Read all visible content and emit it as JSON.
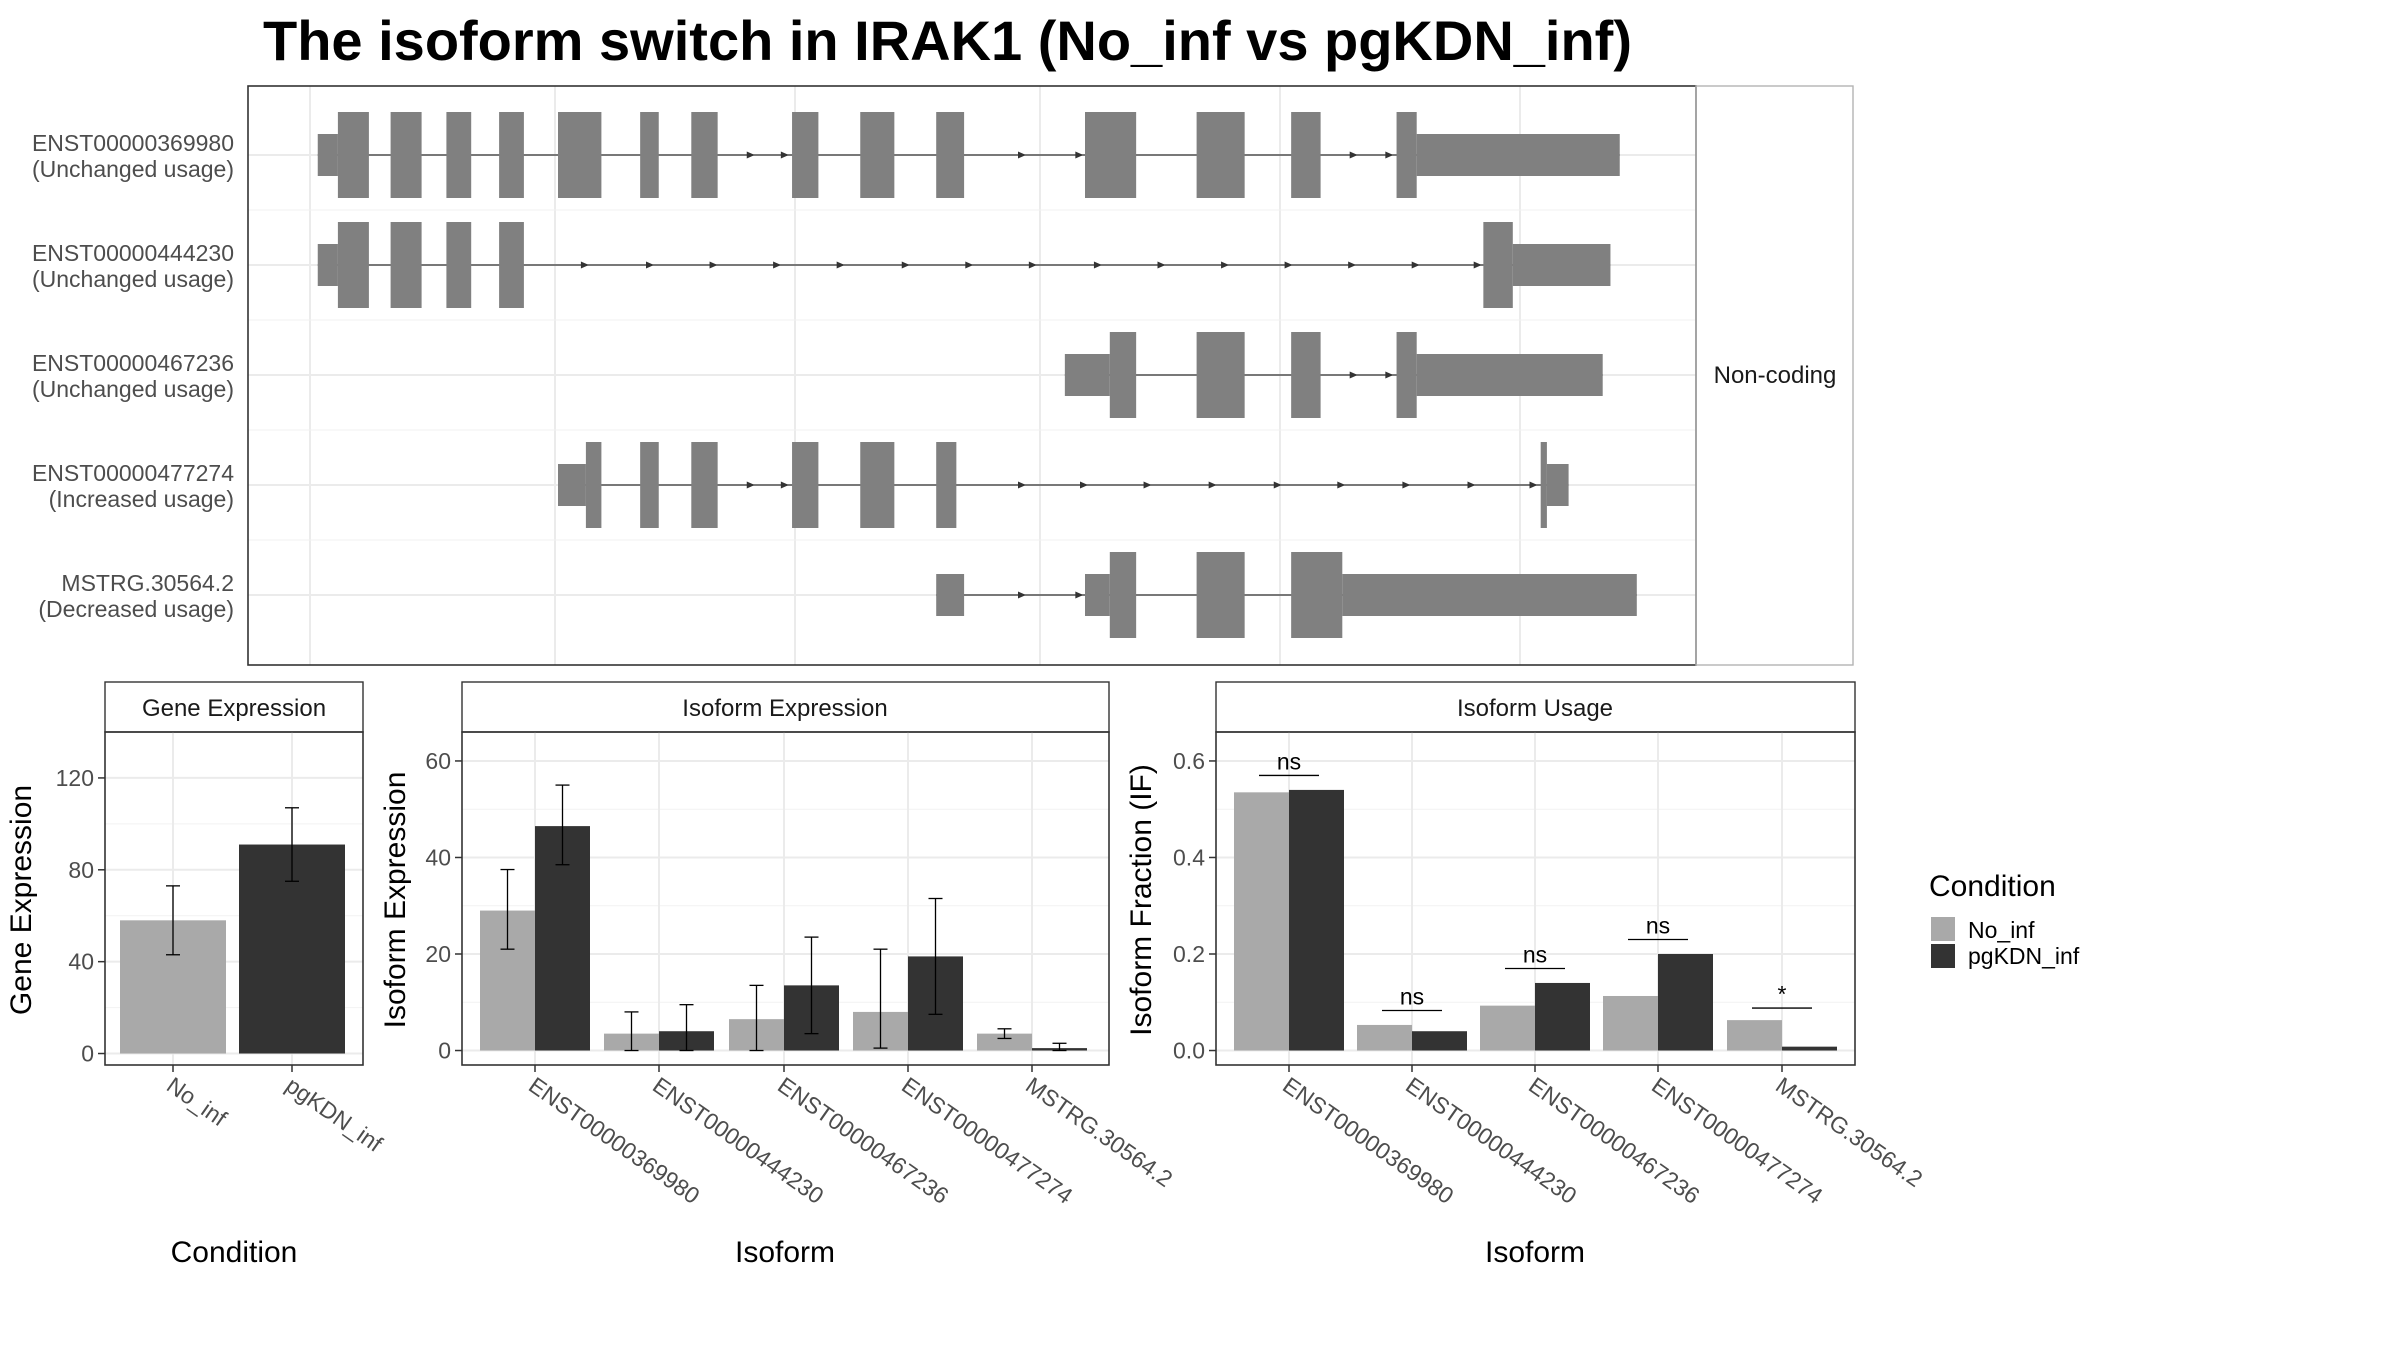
{
  "title": "The isoform switch in IRAK1 (No_inf vs pgKDN_inf)",
  "colors": {
    "exon": "#808080",
    "No_inf": "#a9a9a9",
    "pgKDN_inf": "#333333",
    "grid": "#ebebeb",
    "panel_border": "#333333"
  },
  "chart_data": [
    {
      "type": "gene-structure",
      "facet_label": "Non-coding",
      "transcripts": [
        {
          "id": "ENST00000369980",
          "status": "(Unchanged usage)",
          "exons": [
            [
              205,
              218,
              "utr"
            ],
            [
              218,
              238,
              "cds"
            ],
            [
              252,
              272,
              "cds"
            ],
            [
              288,
              304,
              "cds"
            ],
            [
              322,
              338,
              "cds"
            ],
            [
              360,
              388,
              "cds"
            ],
            [
              413,
              425,
              "cds"
            ],
            [
              446,
              463,
              "cds"
            ],
            [
              511,
              528,
              "cds"
            ],
            [
              555,
              577,
              "cds"
            ],
            [
              604,
              622,
              "cds"
            ],
            [
              700,
              733,
              "cds"
            ],
            [
              772,
              803,
              "cds"
            ],
            [
              833,
              852,
              "cds"
            ],
            [
              901,
              914,
              "cds"
            ],
            [
              914,
              1045,
              "utr"
            ]
          ],
          "arrows": [
            485,
            507,
            660,
            697,
            874,
            897
          ]
        },
        {
          "id": "ENST00000444230",
          "status": "(Unchanged usage)",
          "exons": [
            [
              205,
              218,
              "utr"
            ],
            [
              218,
              238,
              "cds"
            ],
            [
              252,
              272,
              "cds"
            ],
            [
              288,
              304,
              "cds"
            ],
            [
              322,
              338,
              "cds"
            ],
            [
              957,
              976,
              "cds"
            ],
            [
              976,
              1039,
              "utr"
            ]
          ],
          "arrows": [
            378,
            420,
            461,
            502,
            543,
            585,
            626,
            667,
            709,
            750,
            791,
            832,
            873,
            914,
            954
          ]
        },
        {
          "id": "ENST00000467236",
          "status": "(Unchanged usage)",
          "exons": [
            [
              687,
              716,
              "utr"
            ],
            [
              716,
              733,
              "cds"
            ],
            [
              772,
              803,
              "cds"
            ],
            [
              833,
              852,
              "cds"
            ],
            [
              901,
              914,
              "cds"
            ],
            [
              914,
              1034,
              "utr"
            ]
          ],
          "arrows": [
            874,
            897
          ]
        },
        {
          "id": "ENST00000477274",
          "status": "(Increased usage)",
          "exons": [
            [
              360,
              378,
              "utr"
            ],
            [
              378,
              388,
              "cds"
            ],
            [
              413,
              425,
              "cds"
            ],
            [
              446,
              463,
              "cds"
            ],
            [
              511,
              528,
              "cds"
            ],
            [
              555,
              577,
              "cds"
            ],
            [
              604,
              617,
              "cds"
            ],
            [
              994,
              998,
              "cds"
            ],
            [
              998,
              1012,
              "utr"
            ]
          ],
          "arrows": [
            485,
            507,
            660,
            700,
            741,
            783,
            825,
            866,
            908,
            950,
            990
          ]
        },
        {
          "id": "MSTRG.30564.2",
          "status": "(Decreased usage)",
          "exons": [
            [
              604,
              622,
              "utr"
            ],
            [
              700,
              716,
              "utr"
            ],
            [
              716,
              733,
              "cds"
            ],
            [
              772,
              803,
              "cds"
            ],
            [
              833,
              866,
              "cds"
            ],
            [
              866,
              1056,
              "utr"
            ]
          ],
          "arrows": [
            660,
            697
          ]
        }
      ]
    },
    {
      "type": "bar",
      "panel_title": "Gene Expression",
      "categories": [
        "No_inf",
        "pgKDN_inf"
      ],
      "values": [
        58,
        91
      ],
      "errors": [
        [
          43,
          73
        ],
        [
          75,
          107
        ]
      ],
      "ylim": [
        -5,
        140
      ],
      "yticks": [
        0,
        40,
        80,
        120
      ],
      "xlabel": "Condition",
      "ylabel": "Gene Expression"
    },
    {
      "type": "bar",
      "panel_title": "Isoform Expression",
      "categories": [
        "ENST00000369980",
        "ENST00000444230",
        "ENST00000467236",
        "ENST00000477274",
        "MSTRG.30564.2"
      ],
      "series": [
        {
          "name": "No_inf",
          "values": [
            29,
            3.5,
            6.5,
            8,
            3.5
          ],
          "errors": [
            [
              21,
              37.5
            ],
            [
              0,
              8
            ],
            [
              0,
              13.5
            ],
            [
              0.5,
              21
            ],
            [
              2.5,
              4.5
            ]
          ]
        },
        {
          "name": "pgKDN_inf",
          "values": [
            46.5,
            4,
            13.5,
            19.5,
            0.5
          ],
          "errors": [
            [
              38.5,
              55
            ],
            [
              0,
              9.5
            ],
            [
              3.5,
              23.5
            ],
            [
              7.5,
              31.5
            ],
            [
              0,
              1.5
            ]
          ]
        }
      ],
      "ylim": [
        -3,
        66
      ],
      "yticks": [
        0,
        20,
        40,
        60
      ],
      "xlabel": "Isoform",
      "ylabel": "Isoform Expression"
    },
    {
      "type": "bar",
      "panel_title": "Isoform Usage",
      "categories": [
        "ENST00000369980",
        "ENST00000444230",
        "ENST00000467236",
        "ENST00000477274",
        "MSTRG.30564.2"
      ],
      "series": [
        {
          "name": "No_inf",
          "values": [
            0.535,
            0.053,
            0.093,
            0.113,
            0.063
          ]
        },
        {
          "name": "pgKDN_inf",
          "values": [
            0.54,
            0.04,
            0.14,
            0.2,
            0.008
          ]
        }
      ],
      "significance": [
        "ns",
        "ns",
        "ns",
        "ns",
        "*"
      ],
      "significance_level": [
        0.57,
        0.083,
        0.17,
        0.23,
        0.088
      ],
      "ylim": [
        -0.03,
        0.66
      ],
      "yticks": [
        "0.0",
        "0.2",
        "0.4",
        "0.6"
      ],
      "xlabel": "Isoform",
      "ylabel": "Isoform Fraction (IF)"
    }
  ],
  "legend": {
    "title": "Condition",
    "entries": [
      "No_inf",
      "pgKDN_inf"
    ],
    "placement": "right"
  }
}
